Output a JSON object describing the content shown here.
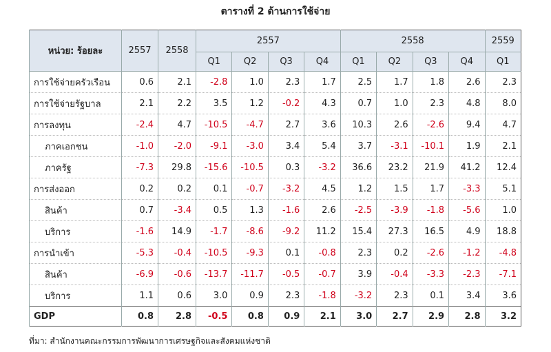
{
  "title": "ตารางที่ 2 ด้านการใช้จ่าย",
  "header": {
    "unit": "หน่วย: ร้อยละ",
    "annual": [
      "2557",
      "2558"
    ],
    "groups": [
      {
        "year": "2557",
        "quarters": [
          "Q1",
          "Q2",
          "Q3",
          "Q4"
        ]
      },
      {
        "year": "2558",
        "quarters": [
          "Q1",
          "Q2",
          "Q3",
          "Q4"
        ]
      },
      {
        "year": "2559",
        "quarters": [
          "Q1"
        ]
      }
    ]
  },
  "rows": [
    {
      "label": "การใช้จ่ายครัวเรือน",
      "indent": false,
      "values": [
        "0.6",
        "2.1",
        "-2.8",
        "1.0",
        "2.3",
        "1.7",
        "2.5",
        "1.7",
        "1.8",
        "2.6",
        "2.3"
      ]
    },
    {
      "label": "การใช้จ่ายรัฐบาล",
      "indent": false,
      "values": [
        "2.1",
        "2.2",
        "3.5",
        "1.2",
        "-0.2",
        "4.3",
        "0.7",
        "1.0",
        "2.3",
        "4.8",
        "8.0"
      ]
    },
    {
      "label": "การลงทุน",
      "indent": false,
      "values": [
        "-2.4",
        "4.7",
        "-10.5",
        "-4.7",
        "2.7",
        "3.6",
        "10.3",
        "2.6",
        "-2.6",
        "9.4",
        "4.7"
      ]
    },
    {
      "label": "ภาคเอกชน",
      "indent": true,
      "values": [
        "-1.0",
        "-2.0",
        "-9.1",
        "-3.0",
        "3.4",
        "5.4",
        "3.7",
        "-3.1",
        "-10.1",
        "1.9",
        "2.1"
      ]
    },
    {
      "label": "ภาครัฐ",
      "indent": true,
      "values": [
        "-7.3",
        "29.8",
        "-15.6",
        "-10.5",
        "0.3",
        "-3.2",
        "36.6",
        "23.2",
        "21.9",
        "41.2",
        "12.4"
      ]
    },
    {
      "label": "การส่งออก",
      "indent": false,
      "values": [
        "0.2",
        "0.2",
        "0.1",
        "-0.7",
        "-3.2",
        "4.5",
        "1.2",
        "1.5",
        "1.7",
        "-3.3",
        "5.1"
      ]
    },
    {
      "label": "สินค้า",
      "indent": true,
      "values": [
        "0.7",
        "-3.4",
        "0.5",
        "1.3",
        "-1.6",
        "2.6",
        "-2.5",
        "-3.9",
        "-1.8",
        "-5.6",
        "1.0"
      ]
    },
    {
      "label": "บริการ",
      "indent": true,
      "values": [
        "-1.6",
        "14.9",
        "-1.7",
        "-8.6",
        "-9.2",
        "11.2",
        "15.4",
        "27.3",
        "16.5",
        "4.9",
        "18.8"
      ]
    },
    {
      "label": "การนำเข้า",
      "indent": false,
      "values": [
        "-5.3",
        "-0.4",
        "-10.5",
        "-9.3",
        "0.1",
        "-0.8",
        "2.3",
        "0.2",
        "-2.6",
        "-1.2",
        "-4.8"
      ]
    },
    {
      "label": "สินค้า",
      "indent": true,
      "values": [
        "-6.9",
        "-0.6",
        "-13.7",
        "-11.7",
        "-0.5",
        "-0.7",
        "3.9",
        "-0.4",
        "-3.3",
        "-2.3",
        "-7.1"
      ]
    },
    {
      "label": "บริการ",
      "indent": true,
      "values": [
        "1.1",
        "0.6",
        "3.0",
        "0.9",
        "2.3",
        "-1.8",
        "-3.2",
        "2.3",
        "0.1",
        "3.4",
        "3.6"
      ]
    }
  ],
  "total": {
    "label": "GDP",
    "values": [
      "0.8",
      "2.8",
      "-0.5",
      "0.8",
      "0.9",
      "2.1",
      "3.0",
      "2.7",
      "2.9",
      "2.8",
      "3.2"
    ]
  },
  "source": "ที่มา: สำนักงานคณะกรรมการพัฒนาการเศรษฐกิจและสังคมแห่งชาติ"
}
